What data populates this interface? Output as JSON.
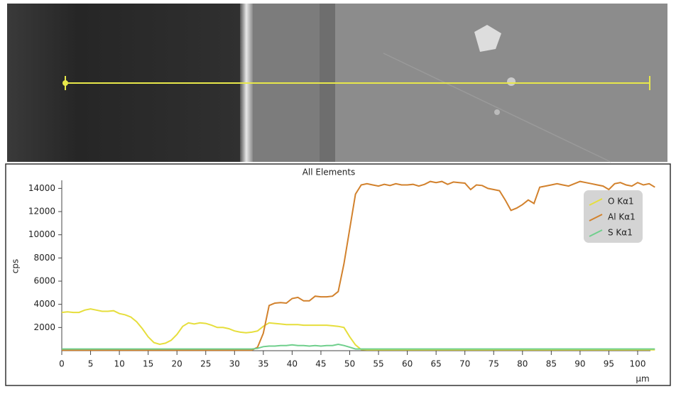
{
  "chart_data": {
    "type": "line",
    "title": "All Elements",
    "y_label": "cps",
    "x_label": "µm",
    "x": [
      0,
      1,
      2,
      3,
      4,
      5,
      6,
      7,
      8,
      9,
      10,
      11,
      12,
      13,
      14,
      15,
      16,
      17,
      18,
      19,
      20,
      21,
      22,
      23,
      24,
      25,
      26,
      27,
      28,
      29,
      30,
      31,
      32,
      33,
      34,
      35,
      36,
      37,
      38,
      39,
      40,
      41,
      42,
      43,
      44,
      45,
      46,
      47,
      48,
      49,
      50,
      51,
      52,
      53,
      54,
      55,
      56,
      57,
      58,
      59,
      60,
      61,
      62,
      63,
      64,
      65,
      66,
      67,
      68,
      69,
      70,
      71,
      72,
      73,
      74,
      75,
      76,
      77,
      78,
      79,
      80,
      81,
      82,
      83,
      84,
      85,
      86,
      87,
      88,
      89,
      90,
      91,
      92,
      93,
      94,
      95,
      96,
      97,
      98,
      99,
      100,
      101,
      102,
      103
    ],
    "series": [
      {
        "name": "O Kα1",
        "color": "#e6de3c",
        "values": [
          3300,
          3350,
          3300,
          3300,
          3500,
          3600,
          3500,
          3400,
          3400,
          3450,
          3200,
          3100,
          2900,
          2500,
          1900,
          1200,
          700,
          550,
          650,
          900,
          1400,
          2100,
          2400,
          2300,
          2400,
          2350,
          2200,
          2000,
          2000,
          1900,
          1700,
          1600,
          1550,
          1600,
          1700,
          2100,
          2400,
          2350,
          2300,
          2250,
          2250,
          2250,
          2200,
          2200,
          2200,
          2200,
          2200,
          2150,
          2100,
          2000,
          1200,
          500,
          100,
          80,
          80,
          80,
          80,
          80,
          80,
          80,
          80,
          80,
          80,
          80,
          80,
          80,
          80,
          80,
          80,
          80,
          80,
          80,
          80,
          80,
          80,
          80,
          80,
          80,
          80,
          80,
          80,
          80,
          80,
          80,
          80,
          80,
          80,
          80,
          80,
          80,
          80,
          80,
          80,
          80,
          80,
          80,
          80,
          80,
          80,
          80,
          80,
          80,
          80,
          80
        ]
      },
      {
        "name": "Al Kα1",
        "color": "#d2812c",
        "values": [
          50,
          50,
          50,
          50,
          50,
          50,
          50,
          50,
          50,
          50,
          50,
          50,
          50,
          50,
          50,
          50,
          50,
          50,
          50,
          50,
          50,
          50,
          50,
          50,
          50,
          50,
          50,
          50,
          50,
          50,
          50,
          50,
          50,
          50,
          300,
          1500,
          3900,
          4100,
          4150,
          4100,
          4500,
          4600,
          4300,
          4300,
          4700,
          4650,
          4650,
          4700,
          5100,
          7500,
          10500,
          13500,
          14300,
          14400,
          14300,
          14200,
          14350,
          14250,
          14400,
          14300,
          14300,
          14350,
          14200,
          14350,
          14600,
          14500,
          14600,
          14350,
          14550,
          14500,
          14450,
          13900,
          14300,
          14250,
          14000,
          13900,
          13800,
          13000,
          12100,
          12300,
          12600,
          13000,
          12700,
          14100,
          14200,
          14300,
          14400,
          14300,
          14200,
          14400,
          14600,
          14500,
          14400,
          14300,
          14200,
          13900,
          14400,
          14500,
          14300,
          14200,
          14500,
          14300,
          14400,
          14100
        ]
      },
      {
        "name": "S Kα1",
        "color": "#6fcf8c",
        "values": [
          150,
          150,
          150,
          150,
          150,
          150,
          150,
          150,
          150,
          150,
          150,
          150,
          150,
          150,
          150,
          150,
          150,
          150,
          150,
          150,
          150,
          150,
          150,
          150,
          150,
          150,
          150,
          150,
          150,
          150,
          150,
          150,
          150,
          150,
          200,
          350,
          400,
          400,
          450,
          450,
          500,
          450,
          450,
          400,
          450,
          400,
          450,
          450,
          550,
          450,
          300,
          150,
          150,
          150,
          150,
          150,
          150,
          150,
          150,
          150,
          150,
          150,
          150,
          150,
          150,
          150,
          150,
          150,
          150,
          150,
          150,
          150,
          150,
          150,
          150,
          150,
          150,
          150,
          150,
          150,
          150,
          150,
          150,
          150,
          150,
          150,
          150,
          150,
          150,
          150,
          150,
          150,
          150,
          150,
          150,
          150,
          150,
          150,
          150,
          150,
          150,
          150,
          150,
          150
        ]
      }
    ],
    "xlim": [
      0,
      103
    ],
    "xticks": [
      0,
      5,
      10,
      15,
      20,
      25,
      30,
      35,
      40,
      45,
      50,
      55,
      60,
      65,
      70,
      75,
      80,
      85,
      90,
      95,
      100
    ],
    "ylim": [
      0,
      14700
    ],
    "yticks": [
      2000,
      4000,
      6000,
      8000,
      10000,
      12000,
      14000
    ],
    "legend": "top-right"
  }
}
